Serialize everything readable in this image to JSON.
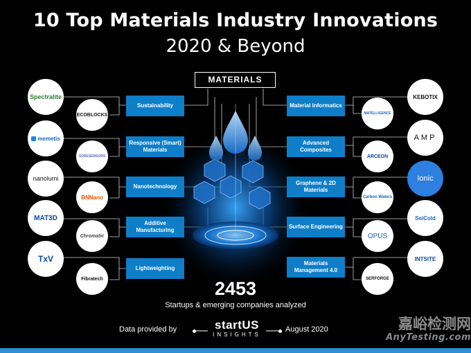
{
  "title": "10 Top Materials Industry Innovations",
  "subtitle": "2020 & Beyond",
  "center_label": "MATERIALS",
  "categories_left": [
    "Sustainability",
    "Responsive (Smart) Materials",
    "Nanotechnology",
    "Additive Manufacturing",
    "Lightweighting"
  ],
  "categories_right": [
    "Material Informatics",
    "Advanced Composites",
    "Graphene & 2D Materials",
    "Surface Engineering",
    "Materials Management 4.0"
  ],
  "logos_left": [
    {
      "name": "Spectralite",
      "color": "#2e7d32"
    },
    {
      "name": "ECOBLOCKS",
      "color": "#111111"
    },
    {
      "name": "memetis",
      "color": "#1565c0"
    },
    {
      "name": "SORESENSORS",
      "color": "#5c6bc0"
    },
    {
      "name": "nanolumi",
      "color": "#111111"
    },
    {
      "name": "BNNano",
      "color": "#e65100"
    },
    {
      "name": "MAT3D",
      "color": "#0d47a1"
    },
    {
      "name": "Chromatic",
      "color": "#444444"
    },
    {
      "name": "TxV",
      "color": "#0d47a1"
    },
    {
      "name": "Fibratech",
      "color": "#111111"
    }
  ],
  "logos_right": [
    {
      "name": "KEBOTIX",
      "color": "#111111"
    },
    {
      "name": "MATELLIGENCE",
      "color": "#1565c0"
    },
    {
      "name": "AMP",
      "color": "#111111"
    },
    {
      "name": "ARCEON",
      "color": "#0d47a1"
    },
    {
      "name": "Ionic",
      "color": "#ffffff"
    },
    {
      "name": "Carbon Waters",
      "color": "#1565c0"
    },
    {
      "name": "SeiCold",
      "color": "#1565c0"
    },
    {
      "name": "OPUS",
      "color": "#1565c0"
    },
    {
      "name": "INTSITE",
      "color": "#0d47a1"
    },
    {
      "name": "SERFORGE",
      "color": "#111111"
    }
  ],
  "startups_count": "2453",
  "startups_text": "Startups & emerging companies analyzed",
  "footer": {
    "data_by": "Data provided by",
    "brand_top": "startUS",
    "brand_bottom": "INSIGHTS",
    "date": "August 2020"
  },
  "watermark": {
    "cn": "嘉峪检测网",
    "en": "AnyTesting.com"
  },
  "colors": {
    "category_blue": "#0e7ec9",
    "accent_blue": "#2f8fd4",
    "background": "#000000"
  }
}
